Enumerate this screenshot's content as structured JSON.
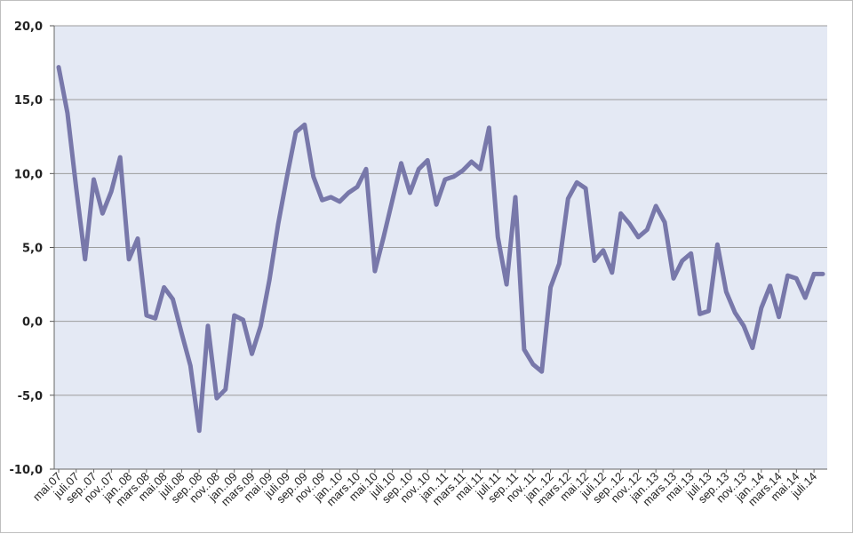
{
  "chart_data": {
    "type": "line",
    "title": "",
    "xlabel": "",
    "ylabel": "",
    "ylim": [
      -10,
      20
    ],
    "yticks": [
      "20,0",
      "15,0",
      "10,0",
      "5,0",
      "0,0",
      "-5,0",
      "-10,0"
    ],
    "ytick_values": [
      20,
      15,
      10,
      5,
      0,
      -5,
      -10
    ],
    "grid": true,
    "legend": "none",
    "colors": {
      "line": "#7878aa",
      "plot_bg": "#e4e9f4",
      "grid": "#9c9c9c"
    },
    "x": [
      "mai.07",
      "juni.07",
      "juli.07",
      "aug.07",
      "sep.07",
      "okt.07",
      "nov.07",
      "des.07",
      "jan..08",
      "feb.08",
      "mars.08",
      "apr.08",
      "mai.08",
      "juni.08",
      "juli.08",
      "aug.08",
      "sep..08",
      "okt.08",
      "nov..08",
      "des.08",
      "jan..09",
      "feb.09",
      "mars.09",
      "apr.09",
      "mai.09",
      "juni.09",
      "juli.09",
      "aug.09",
      "sep..09",
      "okt.09",
      "nov..09",
      "des.09",
      "jan..10",
      "feb.10",
      "mars.10",
      "apr.10",
      "mai.10",
      "juni.10",
      "juli.10",
      "aug.10",
      "sep..10",
      "okt.10",
      "nov..10",
      "des.10",
      "jan..11",
      "feb.11",
      "mars.11",
      "apr.11",
      "mai.11",
      "juni.11",
      "juli.11",
      "aug.11",
      "sep..11",
      "okt.11",
      "nov..11",
      "des.11",
      "jan..12",
      "feb.12",
      "mars.12",
      "apr.12",
      "mai.12",
      "juni.12",
      "juli.12",
      "aug.12",
      "sep..12",
      "okt.12",
      "nov..12",
      "des.12",
      "jan..13",
      "feb.13",
      "mars.13",
      "apr.13",
      "mai.13",
      "juni.13",
      "juli.13",
      "aug.13",
      "sep..13",
      "okt.13",
      "nov..13",
      "des.13",
      "jan..14",
      "feb.14",
      "mars.14",
      "apr.14",
      "mai.14",
      "juni.14",
      "juli.14",
      "aug.14"
    ],
    "xtick_labels": [
      "mai.07",
      "juli.07",
      "sep..07",
      "nov..07",
      "jan..08",
      "mars.08",
      "mai.08",
      "juli.08",
      "sep..08",
      "nov..08",
      "jan..09",
      "mars.09",
      "mai.09",
      "juli.09",
      "sep..09",
      "nov..09",
      "jan..10",
      "mars.10",
      "mai.10",
      "juli.10",
      "sep..10",
      "nov..10",
      "jan..11",
      "mars.11",
      "mai.11",
      "juli.11",
      "sep..11",
      "nov..11",
      "jan..12",
      "mars.12",
      "mai.12",
      "juli.12",
      "sep..12",
      "nov..12",
      "jan..13",
      "mars.13",
      "mai.13",
      "juli.13",
      "sep..13",
      "nov..13",
      "jan..14",
      "mars.14",
      "mai.14",
      "juli.14"
    ],
    "series": [
      {
        "values": [
          17.2,
          14.1,
          9.0,
          4.2,
          9.6,
          7.3,
          8.8,
          11.1,
          4.2,
          5.6,
          0.4,
          0.2,
          2.3,
          1.5,
          -0.8,
          -3.0,
          -7.4,
          -0.3,
          -5.2,
          -4.6,
          0.4,
          0.1,
          -2.2,
          -0.3,
          2.8,
          6.6,
          9.8,
          12.8,
          13.3,
          9.8,
          8.2,
          8.4,
          8.1,
          8.7,
          9.1,
          10.3,
          3.4,
          5.7,
          8.2,
          10.7,
          8.7,
          10.3,
          10.9,
          7.9,
          9.6,
          9.8,
          10.2,
          10.8,
          10.3,
          13.1,
          5.7,
          2.5,
          8.4,
          -1.9,
          -2.9,
          -3.4,
          2.3,
          3.9,
          8.3,
          9.4,
          9.0,
          4.1,
          4.8,
          3.3,
          7.3,
          6.6,
          5.7,
          6.2,
          7.8,
          6.7,
          2.9,
          4.1,
          4.6,
          0.5,
          0.7,
          5.2,
          2.0,
          0.6,
          -0.3,
          -1.8,
          0.9,
          2.4,
          0.3,
          3.1,
          2.9,
          1.6,
          3.2,
          3.2
        ]
      }
    ]
  }
}
